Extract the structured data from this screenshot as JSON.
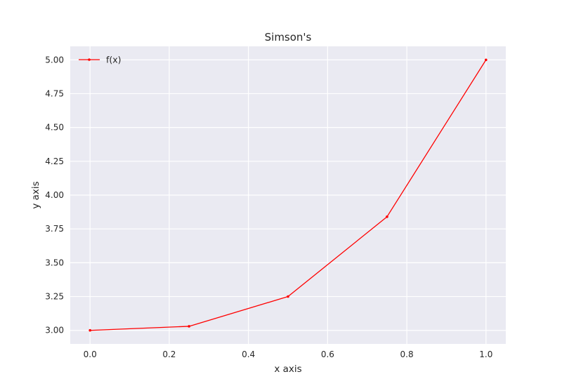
{
  "chart_data": {
    "type": "line",
    "title": "Simson's",
    "xlabel": "x axis",
    "ylabel": "y axis",
    "xlim": [
      -0.05,
      1.05
    ],
    "ylim": [
      2.9,
      5.1
    ],
    "xticks": [
      0.0,
      0.2,
      0.4,
      0.6,
      0.8,
      1.0
    ],
    "xtick_labels": [
      "0.0",
      "0.2",
      "0.4",
      "0.6",
      "0.8",
      "1.0"
    ],
    "yticks": [
      3.0,
      3.25,
      3.5,
      3.75,
      4.0,
      4.25,
      4.5,
      4.75,
      5.0
    ],
    "ytick_labels": [
      "3.00",
      "3.25",
      "3.50",
      "3.75",
      "4.00",
      "4.25",
      "4.50",
      "4.75",
      "5.00"
    ],
    "grid": true,
    "legend_position": "upper-left",
    "series": [
      {
        "name": "f(x)",
        "color": "#ff0000",
        "marker": "dot",
        "x": [
          0.0,
          0.25,
          0.5,
          0.75,
          1.0
        ],
        "y": [
          3.0,
          3.03,
          3.25,
          3.84,
          5.0
        ]
      }
    ],
    "colors": {
      "plot_background": "#eaeaf2",
      "grid": "#ffffff",
      "text": "#262626"
    }
  }
}
